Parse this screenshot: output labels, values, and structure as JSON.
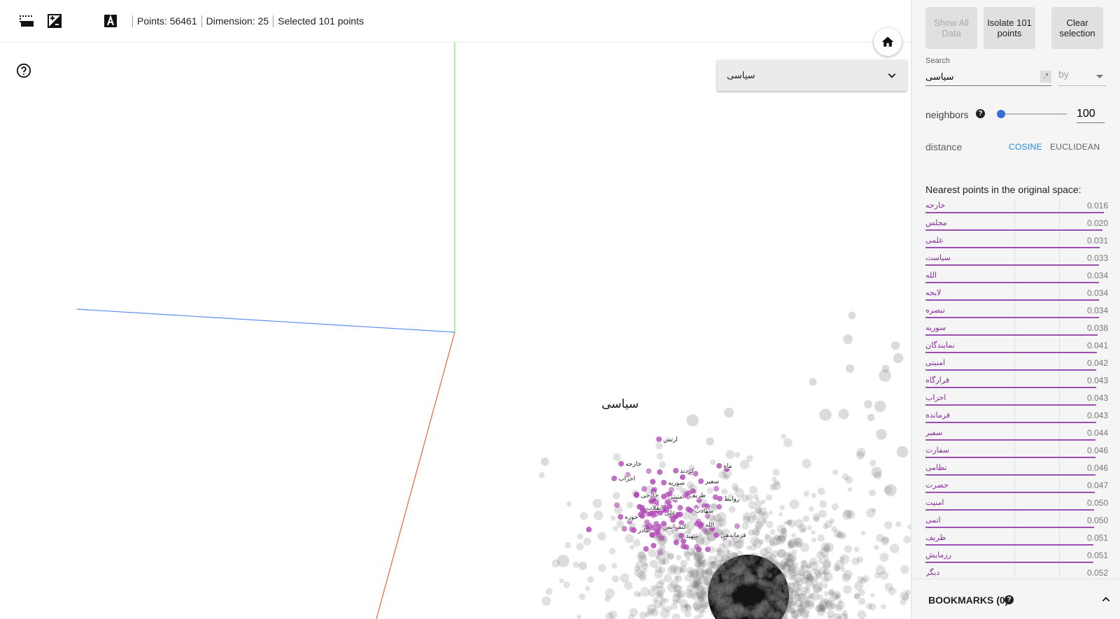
{
  "toolbar": {
    "icons": [
      "bounding-box-select-icon",
      "night-mode-icon",
      "moon-icon",
      "label-a-icon"
    ],
    "points_text": "Points: 56461",
    "dimension_text": "Dimension: 25",
    "selected_text": "Selected 101 points"
  },
  "canvas": {
    "label_by_value": "سیاسی",
    "highlight_label": "سیاسی",
    "axis_colors": {
      "x": "#5b8cf0",
      "y": "#7ee26a",
      "z": "#f2623f"
    },
    "selected_color": "#b04cb5",
    "point_labels": [
      "ارتش",
      "خارجه",
      "احزاب",
      "سوریه",
      "کردند",
      "سفیر",
      "علی",
      "طریف",
      "روابط",
      "امنیتی",
      "حضرت",
      "شهادت",
      "انقلاب",
      "کنفرانس",
      "الله",
      "شهید",
      "فرماندهی",
      "حوزه",
      "مادر",
      "خارجی",
      "ماه"
    ]
  },
  "panel": {
    "show_all_label": "Show All Data",
    "isolate_label": "Isolate 101 points",
    "clear_label": "Clear selection",
    "search_label": "Search",
    "search_value": "سیاسی",
    "regex_label": ".*",
    "by_label": "by",
    "neighbors_label": "neighbors",
    "neighbors_value": "100",
    "neighbors_fraction": 0.04,
    "distance_label": "distance",
    "cosine_label": "COSINE",
    "euclidean_label": "EUCLIDEAN",
    "nearest_title": "Nearest points in the original space:",
    "nearest": [
      {
        "name": "خارجه",
        "value": "0.016"
      },
      {
        "name": "مجلس",
        "value": "0.020"
      },
      {
        "name": "علمی",
        "value": "0.031"
      },
      {
        "name": "سیاست",
        "value": "0.033"
      },
      {
        "name": "الله",
        "value": "0.034"
      },
      {
        "name": "لایحه",
        "value": "0.034"
      },
      {
        "name": "تبصره",
        "value": "0.034"
      },
      {
        "name": "سوریه",
        "value": "0.038"
      },
      {
        "name": "نمایندگان",
        "value": "0.041"
      },
      {
        "name": "امنیتی",
        "value": "0.042"
      },
      {
        "name": "قرارگاه",
        "value": "0.043"
      },
      {
        "name": "احزاب",
        "value": "0.043"
      },
      {
        "name": "فرمانده",
        "value": "0.043"
      },
      {
        "name": "سفیر",
        "value": "0.044"
      },
      {
        "name": "سفارت",
        "value": "0.046"
      },
      {
        "name": "نظامی",
        "value": "0.046"
      },
      {
        "name": "حضرت",
        "value": "0.047"
      },
      {
        "name": "امنیت",
        "value": "0.050"
      },
      {
        "name": "اتمی",
        "value": "0.050"
      },
      {
        "name": "ظریف",
        "value": "0.051"
      },
      {
        "name": "رزمایش",
        "value": "0.051"
      },
      {
        "name": "دیگر",
        "value": "0.052"
      }
    ],
    "bookmarks_label": "BOOKMARKS (0)"
  },
  "colors": {
    "accent": "#1e88e5",
    "selection": "#8b2a9e"
  }
}
